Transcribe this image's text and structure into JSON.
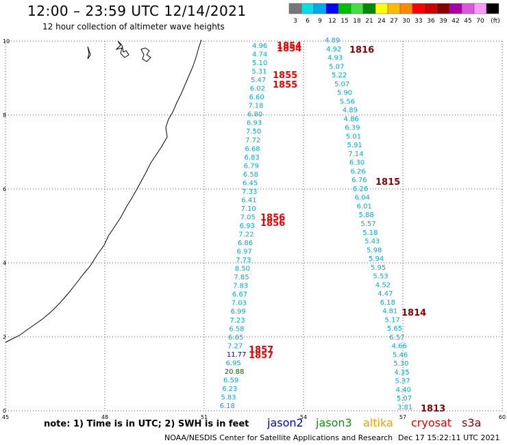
{
  "title": "12:00 – 23:59 UTC 12/14/2021",
  "subtitle": "12 hour collection of altimeter wave heights",
  "colorbar": {
    "colors": [
      "#777777",
      "#00e0e0",
      "#00a8f0",
      "#0000ff",
      "#00c000",
      "#40e040",
      "#008800",
      "#ffff00",
      "#ffbb00",
      "#ff8800",
      "#ff0000",
      "#cc0000",
      "#880000",
      "#aa00aa",
      "#dd55dd",
      "#ff99ff",
      "#000000"
    ],
    "labels": [
      "3",
      "6",
      "9",
      "12",
      "15",
      "18",
      "21",
      "24",
      "27",
      "30",
      "33",
      "36",
      "39",
      "42",
      "45",
      "70",
      "(ft)"
    ]
  },
  "axes": {
    "x_ticks": [
      "45",
      "48",
      "51",
      "54",
      "57",
      "60"
    ],
    "y_ticks": [
      "0",
      "2",
      "4",
      "6",
      "8",
      "10"
    ]
  },
  "track1_values": [
    "4.96",
    "4.74",
    "5.10",
    "5.31",
    "5.47",
    "6.02",
    "6.60",
    "7.18",
    "6.80",
    "6.93",
    "7.50",
    "7.72",
    "6.68",
    "6.83",
    "6.79",
    "6.58",
    "6.45",
    "7.33",
    "6.41",
    "7.10",
    "7.05",
    "6.93",
    "7.22",
    "6.86",
    "6.97",
    "7.73",
    "8.50",
    "7.85",
    "7.83",
    "6.67",
    "7.03",
    "6.99",
    "7.23",
    "6.58",
    "6.65",
    "7.27",
    "11.77",
    "6.95",
    "20.88",
    "6.59",
    "6.23",
    "5.83",
    "6.18"
  ],
  "track2_values": [
    "4.89",
    "4.92",
    "4.93",
    "5.07",
    "5.22",
    "5.07",
    "5.90",
    "5.56",
    "4.89",
    "4.86",
    "6.39",
    "5.01",
    "5.91",
    "7.14",
    "6.30",
    "6.26",
    "6.76",
    "6.26",
    "6.04",
    "6.01",
    "5.88",
    "5.57",
    "5.18",
    "5.43",
    "5.98",
    "5.94",
    "5.95",
    "5.53",
    "4.52",
    "4.47",
    "6.18",
    "4.81",
    "5.17",
    "5.65",
    "6.57",
    "4.66",
    "5.46",
    "5.30",
    "4.35",
    "5.37",
    "4.40",
    "5.07",
    "3.81"
  ],
  "time_labels_track1": [
    "1854",
    "1854",
    "1855",
    "1855",
    "1856",
    "1856",
    "1857",
    "1857"
  ],
  "time_labels_track2": [
    "1816",
    "1815",
    "1814",
    "1813"
  ],
  "note": "note: 1) Time is in UTC; 2) SWH is in feet",
  "legend": {
    "jason2": {
      "label": "jason2",
      "color": "#0000cc"
    },
    "jason3": {
      "label": "jason3",
      "color": "#009900"
    },
    "altika": {
      "label": "altika",
      "color": "#ff9900"
    },
    "cryosat": {
      "label": "cryosat",
      "color": "#dd0000"
    },
    "s3a": {
      "label": "s3a",
      "color": "#880000"
    }
  },
  "credit": "NOAA/NESDIS Center for Satellite Applications and Research",
  "timestamp": "Dec 17 15:22:11 UTC 2021"
}
